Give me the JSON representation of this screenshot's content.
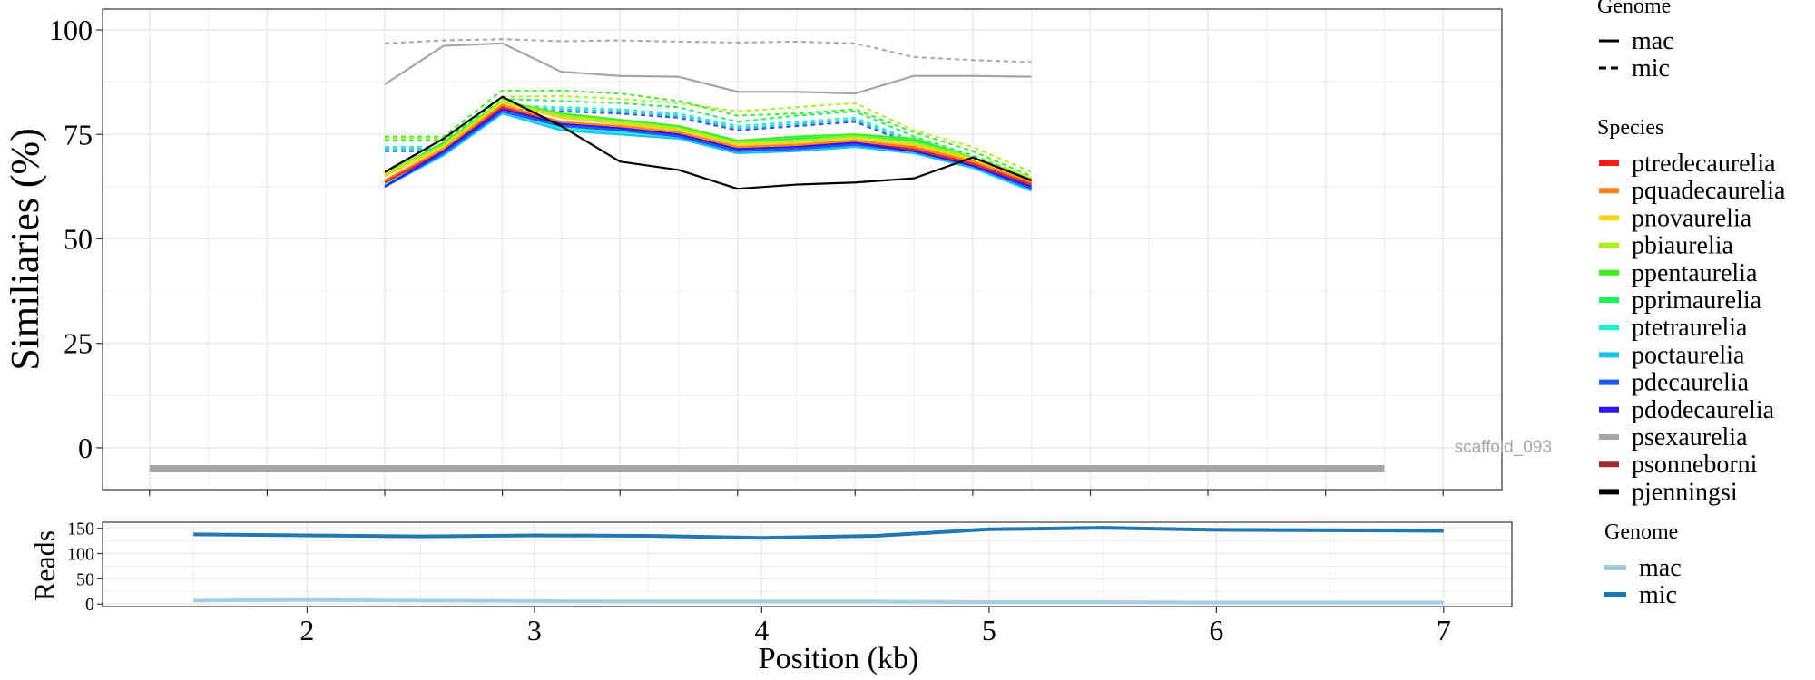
{
  "chart_data": [
    {
      "type": "line",
      "ylabel": "Similiaries (%)",
      "ylim": [
        -10,
        105
      ],
      "xlim": [
        1.3,
        7.25
      ],
      "yticks": [
        0,
        25,
        50,
        75,
        100
      ],
      "grid": true,
      "legend_position": "right",
      "annotation": "scaffold_093",
      "scaffold_bar": {
        "start": 1.5,
        "end": 6.75,
        "y": -5,
        "color": "#a6a6a6"
      },
      "x": [
        2.5,
        2.75,
        3.0,
        3.25,
        3.5,
        3.75,
        4.0,
        4.25,
        4.5,
        4.75,
        5.0,
        5.25
      ],
      "legends": [
        {
          "title": "Genome",
          "entries": [
            {
              "label": "mac",
              "style": "solid"
            },
            {
              "label": "mic",
              "style": "dashed"
            }
          ]
        },
        {
          "title": "Species",
          "entries": [
            {
              "label": "ptredecaurelia",
              "color": "#ff1a1a"
            },
            {
              "label": "pquadecaurelia",
              "color": "#ff7f1a"
            },
            {
              "label": "pnovaurelia",
              "color": "#ffd21a"
            },
            {
              "label": "pbiaurelia",
              "color": "#a8f21a"
            },
            {
              "label": "ppentaurelia",
              "color": "#3cf21a"
            },
            {
              "label": "pprimaurelia",
              "color": "#1af25a"
            },
            {
              "label": "ptetraurelia",
              "color": "#1af2c8"
            },
            {
              "label": "poctaurelia",
              "color": "#1ac2f2"
            },
            {
              "label": "pdecaurelia",
              "color": "#1a5af2"
            },
            {
              "label": "pdodecaurelia",
              "color": "#2a1af2"
            },
            {
              "label": "psexaurelia",
              "color": "#a6a6a6"
            },
            {
              "label": "psonneborni",
              "color": "#a52a2a"
            },
            {
              "label": "pjenningsi",
              "color": "#000000"
            }
          ]
        }
      ],
      "series": [
        {
          "species": "psexaurelia",
          "genome": "mic",
          "color": "#a6a6a6",
          "values": [
            96.8,
            97.5,
            97.8,
            97.3,
            97.5,
            97.2,
            97.0,
            97.2,
            96.8,
            93.5,
            92.8,
            92.3
          ]
        },
        {
          "species": "psexaurelia",
          "genome": "mac",
          "color": "#a6a6a6",
          "values": [
            87.0,
            96.2,
            96.8,
            90.0,
            89.0,
            88.8,
            85.2,
            85.2,
            84.8,
            89.0,
            89.0,
            88.8
          ]
        },
        {
          "species": "pbiaurelia",
          "genome": "mic",
          "color": "#a8f21a",
          "values": [
            74.0,
            74.0,
            84.0,
            84.2,
            83.5,
            82.5,
            80.5,
            81.5,
            82.5,
            76.0,
            72.0,
            66.0
          ]
        },
        {
          "species": "ppentaurelia",
          "genome": "mic",
          "color": "#3cf21a",
          "values": [
            74.5,
            74.5,
            85.5,
            85.5,
            84.8,
            83.0,
            79.5,
            80.0,
            81.0,
            75.5,
            71.0,
            65.0
          ]
        },
        {
          "species": "pprimaurelia",
          "genome": "mic",
          "color": "#1af25a",
          "values": [
            73.5,
            73.5,
            83.5,
            83.0,
            82.5,
            81.5,
            78.0,
            79.5,
            80.5,
            74.5,
            70.0,
            64.5
          ]
        },
        {
          "species": "ptetraurelia",
          "genome": "mic",
          "color": "#1af2c8",
          "values": [
            72.0,
            72.0,
            82.0,
            81.5,
            81.0,
            80.0,
            77.0,
            78.0,
            79.0,
            73.5,
            69.0,
            63.5
          ]
        },
        {
          "species": "poctaurelia",
          "genome": "mic",
          "color": "#1ac2f2",
          "values": [
            71.5,
            71.5,
            81.5,
            81.0,
            80.5,
            79.5,
            76.5,
            77.5,
            78.5,
            73.0,
            68.5,
            63.0
          ]
        },
        {
          "species": "pdecaurelia",
          "genome": "mic",
          "color": "#1a5af2",
          "values": [
            71.0,
            71.0,
            81.0,
            80.5,
            80.0,
            79.0,
            76.0,
            77.0,
            78.0,
            72.5,
            68.0,
            62.5
          ]
        },
        {
          "species": "ppentaurelia",
          "genome": "mac",
          "color": "#3cf21a",
          "values": [
            65.5,
            73.0,
            83.0,
            80.0,
            78.5,
            77.0,
            73.5,
            74.5,
            75.0,
            74.0,
            69.5,
            64.5
          ]
        },
        {
          "species": "pprimaurelia",
          "genome": "mac",
          "color": "#1af25a",
          "values": [
            65.0,
            72.5,
            82.5,
            79.5,
            78.0,
            76.5,
            73.0,
            74.0,
            74.5,
            73.5,
            69.0,
            64.0
          ]
        },
        {
          "species": "pbiaurelia",
          "genome": "mac",
          "color": "#a8f21a",
          "values": [
            65.5,
            72.5,
            83.0,
            79.5,
            78.0,
            76.5,
            73.0,
            73.5,
            74.5,
            73.0,
            69.5,
            64.5
          ]
        },
        {
          "species": "pnovaurelia",
          "genome": "mac",
          "color": "#ffd21a",
          "values": [
            65.0,
            72.0,
            82.5,
            79.0,
            77.5,
            76.0,
            72.5,
            73.0,
            74.0,
            72.5,
            69.0,
            64.0
          ]
        },
        {
          "species": "pquadecaurelia",
          "genome": "mac",
          "color": "#ff7f1a",
          "values": [
            64.0,
            71.5,
            82.0,
            78.0,
            77.0,
            75.5,
            72.0,
            72.5,
            73.5,
            72.0,
            68.5,
            63.5
          ]
        },
        {
          "species": "ptredecaurelia",
          "genome": "mac",
          "color": "#ff1a1a",
          "values": [
            63.5,
            71.0,
            81.5,
            77.5,
            76.5,
            75.0,
            71.5,
            72.0,
            73.0,
            71.5,
            68.0,
            63.0
          ]
        },
        {
          "species": "ptetraurelia",
          "genome": "mac",
          "color": "#1af2c8",
          "values": [
            63.0,
            70.5,
            80.5,
            76.5,
            75.5,
            74.5,
            71.0,
            71.5,
            72.5,
            71.0,
            67.5,
            62.0
          ]
        },
        {
          "species": "poctaurelia",
          "genome": "mac",
          "color": "#1ac2f2",
          "values": [
            62.5,
            70.0,
            80.0,
            76.0,
            75.0,
            74.0,
            70.5,
            71.0,
            72.0,
            70.5,
            67.0,
            61.5
          ]
        },
        {
          "species": "pdecaurelia",
          "genome": "mac",
          "color": "#1a5af2",
          "values": [
            62.5,
            70.5,
            80.5,
            77.0,
            76.0,
            74.5,
            71.0,
            71.5,
            72.5,
            71.0,
            67.5,
            62.0
          ]
        },
        {
          "species": "pdodecaurelia",
          "genome": "mac",
          "color": "#2a1af2",
          "values": [
            62.5,
            71.0,
            81.0,
            77.5,
            76.5,
            75.0,
            71.5,
            72.0,
            73.0,
            71.0,
            67.5,
            62.5
          ]
        },
        {
          "species": "pjenningsi",
          "genome": "mac",
          "color": "#000000",
          "values": [
            66.0,
            74.0,
            84.0,
            77.0,
            68.5,
            66.5,
            62.0,
            63.0,
            63.5,
            64.5,
            69.5,
            64.0
          ]
        }
      ]
    },
    {
      "type": "line",
      "xlabel": "Position (kb)",
      "ylabel": "Reads",
      "ylim": [
        -5,
        162
      ],
      "xlim": [
        1.1,
        7.3
      ],
      "xticks": [
        2,
        3,
        4,
        5,
        6,
        7
      ],
      "yticks": [
        0,
        50,
        100,
        150
      ],
      "grid": true,
      "legend_position": "right",
      "legend": {
        "title": "Genome",
        "entries": [
          {
            "label": "mac",
            "color": "#a6cee3"
          },
          {
            "label": "mic",
            "color": "#1f78b4"
          }
        ]
      },
      "x": [
        1.5,
        2.0,
        2.5,
        3.0,
        3.5,
        4.0,
        4.5,
        5.0,
        5.5,
        6.0,
        6.5,
        7.0
      ],
      "series": [
        {
          "genome": "mic",
          "color": "#1f78b4",
          "values": [
            138,
            136,
            134,
            136,
            135,
            131,
            135,
            148,
            151,
            147,
            146,
            145
          ]
        },
        {
          "genome": "mac",
          "color": "#a6cee3",
          "values": [
            7,
            8,
            7,
            6,
            5,
            5,
            5,
            4,
            4,
            3,
            3,
            3
          ]
        }
      ]
    }
  ]
}
